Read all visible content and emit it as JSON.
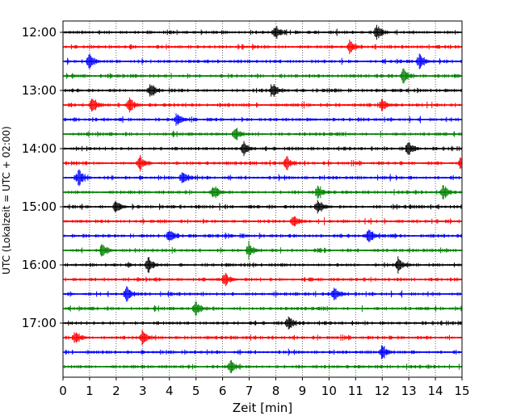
{
  "chart_data": {
    "type": "line",
    "title": "",
    "xlabel": "Zeit  [min]",
    "ylabel": "UTC (Lokalzeit = UTC + 02:00)",
    "xlim": [
      0,
      15
    ],
    "x_ticks": [
      0,
      1,
      2,
      3,
      4,
      5,
      6,
      7,
      8,
      9,
      10,
      11,
      12,
      13,
      14,
      15
    ],
    "y_tick_labels": [
      "12:00",
      "13:00",
      "14:00",
      "15:00",
      "16:00",
      "17:00"
    ],
    "grid": "vertical dotted lines at each minute",
    "trace_interval_minutes": 15,
    "trace_colors": [
      "#000000",
      "#ff0000",
      "#0000ff",
      "#008000"
    ],
    "traces": [
      {
        "start": "12:00",
        "events_min": [
          8.0,
          11.8
        ]
      },
      {
        "start": "12:15",
        "events_min": [
          10.8
        ]
      },
      {
        "start": "12:30",
        "events_min": [
          1.0,
          13.4
        ]
      },
      {
        "start": "12:45",
        "events_min": [
          12.8
        ]
      },
      {
        "start": "13:00",
        "events_min": [
          3.3,
          7.9
        ]
      },
      {
        "start": "13:15",
        "events_min": [
          1.1,
          2.5,
          12.0
        ]
      },
      {
        "start": "13:30",
        "events_min": [
          4.3
        ]
      },
      {
        "start": "13:45",
        "events_min": [
          6.5
        ]
      },
      {
        "start": "14:00",
        "events_min": [
          6.8,
          13.0
        ]
      },
      {
        "start": "14:15",
        "events_min": [
          2.9,
          8.4,
          15.0
        ]
      },
      {
        "start": "14:30",
        "events_min": [
          0.6,
          4.5
        ]
      },
      {
        "start": "14:45",
        "events_min": [
          5.7,
          9.6,
          14.3
        ]
      },
      {
        "start": "15:00",
        "events_min": [
          2.0,
          9.6
        ]
      },
      {
        "start": "15:15",
        "events_min": [
          8.7
        ]
      },
      {
        "start": "15:30",
        "events_min": [
          4.0,
          11.5
        ]
      },
      {
        "start": "15:45",
        "events_min": [
          1.5,
          7.0
        ]
      },
      {
        "start": "16:00",
        "events_min": [
          3.2,
          12.6
        ]
      },
      {
        "start": "16:15",
        "events_min": [
          6.1
        ]
      },
      {
        "start": "16:30",
        "events_min": [
          2.4,
          10.2
        ]
      },
      {
        "start": "16:45",
        "events_min": [
          5.0
        ]
      },
      {
        "start": "17:00",
        "events_min": [
          8.5
        ]
      },
      {
        "start": "17:15",
        "events_min": [
          0.5,
          3.0
        ]
      },
      {
        "start": "17:30",
        "events_min": [
          12.0
        ]
      },
      {
        "start": "17:45",
        "events_min": [
          6.3
        ]
      }
    ]
  }
}
